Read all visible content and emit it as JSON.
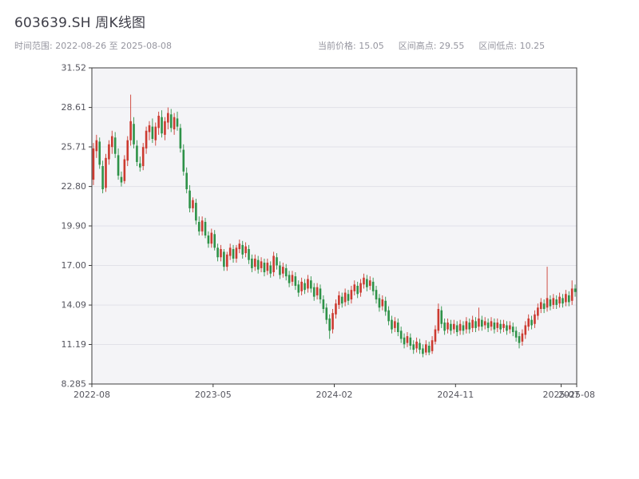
{
  "header": {
    "title": "603639.SH 周K线图",
    "range_label": "时间范围: 2022-08-26 至 2025-08-08",
    "stat_current": "当前价格: 15.05",
    "stat_high": "区间高点: 29.55",
    "stat_low": "区间低点: 10.25"
  },
  "chart_data": {
    "type": "candlestick",
    "title": "603639.SH 周K线图",
    "frequency": "weekly",
    "start_date": "2022-08-26",
    "end_date": "2025-08-08",
    "current_price": 15.05,
    "range_high": 29.55,
    "range_low": 10.25,
    "ylim": [
      8.285,
      31.52
    ],
    "y_tick_labels": [
      "8.285",
      "11.19",
      "14.09",
      "17.00",
      "19.90",
      "22.80",
      "25.71",
      "28.61",
      "31.52"
    ],
    "x_tick_labels": [
      "2022-08",
      "2023-05",
      "2024-02",
      "2024-11",
      "2025-08"
    ],
    "x_tick_weeks": [
      0,
      39,
      78,
      117,
      156
    ],
    "x_overlap_label": "2025-07",
    "x_overlap_week": 151,
    "grid": "horizontal-only",
    "legend": "none",
    "up_color": "#cc3a30",
    "down_color": "#2e9248",
    "panel_bg": "#f4f4f7",
    "grid_color": "#e1e1e8",
    "frame_color": "#3c3c3c",
    "ohlc_columns": [
      "open",
      "high",
      "low",
      "close"
    ],
    "ohlc": [
      [
        23.3,
        26.0,
        22.9,
        25.6
      ],
      [
        25.4,
        26.6,
        24.9,
        26.2
      ],
      [
        26.1,
        26.4,
        24.1,
        24.4
      ],
      [
        24.3,
        24.7,
        22.3,
        22.6
      ],
      [
        22.7,
        25.2,
        22.4,
        24.9
      ],
      [
        24.8,
        26.2,
        24.4,
        25.9
      ],
      [
        25.7,
        26.9,
        25.2,
        26.5
      ],
      [
        26.4,
        26.8,
        24.9,
        25.2
      ],
      [
        25.1,
        25.6,
        23.3,
        23.6
      ],
      [
        23.5,
        23.9,
        22.8,
        23.1
      ],
      [
        23.2,
        25.1,
        23.0,
        24.8
      ],
      [
        24.7,
        26.5,
        24.3,
        26.2
      ],
      [
        26.2,
        29.55,
        25.8,
        27.6
      ],
      [
        27.4,
        27.9,
        25.6,
        25.9
      ],
      [
        25.8,
        26.2,
        24.3,
        24.6
      ],
      [
        24.5,
        25.0,
        23.9,
        24.2
      ],
      [
        24.3,
        26.0,
        24.0,
        25.7
      ],
      [
        25.6,
        27.2,
        25.2,
        26.9
      ],
      [
        26.8,
        27.6,
        26.2,
        27.3
      ],
      [
        27.2,
        27.8,
        26.0,
        26.3
      ],
      [
        26.2,
        27.5,
        25.8,
        27.2
      ],
      [
        27.1,
        28.3,
        26.6,
        28.0
      ],
      [
        27.9,
        28.4,
        26.4,
        26.7
      ],
      [
        26.6,
        27.9,
        26.2,
        27.6
      ],
      [
        27.5,
        28.61,
        27.0,
        28.2
      ],
      [
        28.1,
        28.5,
        26.8,
        27.1
      ],
      [
        27.0,
        28.2,
        26.6,
        27.9
      ],
      [
        27.8,
        28.3,
        26.9,
        27.2
      ],
      [
        27.1,
        27.4,
        25.3,
        25.6
      ],
      [
        25.5,
        25.9,
        23.6,
        23.9
      ],
      [
        23.8,
        24.2,
        22.3,
        22.6
      ],
      [
        22.5,
        22.9,
        20.9,
        21.2
      ],
      [
        21.2,
        22.0,
        20.9,
        21.8
      ],
      [
        21.6,
        21.9,
        20.0,
        20.3
      ],
      [
        20.2,
        20.6,
        19.2,
        19.5
      ],
      [
        19.5,
        20.6,
        19.2,
        20.3
      ],
      [
        20.2,
        20.5,
        19.0,
        19.2
      ],
      [
        19.2,
        19.5,
        18.3,
        18.6
      ],
      [
        18.6,
        19.7,
        18.3,
        19.4
      ],
      [
        19.3,
        19.6,
        18.1,
        18.3
      ],
      [
        18.3,
        18.6,
        17.3,
        17.6
      ],
      [
        17.6,
        18.5,
        17.3,
        18.2
      ],
      [
        18.0,
        18.2,
        16.6,
        16.9
      ],
      [
        16.9,
        18.0,
        16.6,
        17.8
      ],
      [
        17.7,
        18.6,
        17.4,
        18.3
      ],
      [
        18.2,
        18.5,
        17.2,
        17.5
      ],
      [
        17.5,
        18.5,
        17.2,
        18.3
      ],
      [
        18.2,
        18.9,
        17.9,
        18.6
      ],
      [
        18.5,
        18.8,
        17.5,
        17.8
      ],
      [
        17.9,
        18.7,
        17.6,
        18.4
      ],
      [
        18.2,
        18.5,
        17.1,
        17.4
      ],
      [
        17.5,
        17.8,
        16.5,
        16.8
      ],
      [
        16.9,
        17.8,
        16.6,
        17.5
      ],
      [
        17.4,
        17.7,
        16.4,
        16.7
      ],
      [
        16.8,
        17.6,
        16.5,
        17.3
      ],
      [
        17.2,
        17.5,
        16.2,
        16.5
      ],
      [
        16.6,
        17.5,
        16.3,
        17.2
      ],
      [
        17.0,
        17.3,
        16.1,
        16.4
      ],
      [
        16.5,
        18.0,
        16.2,
        17.7
      ],
      [
        17.6,
        17.9,
        16.7,
        17.0
      ],
      [
        17.0,
        17.3,
        16.0,
        16.3
      ],
      [
        16.4,
        17.2,
        16.1,
        16.9
      ],
      [
        16.8,
        17.1,
        15.9,
        16.2
      ],
      [
        16.3,
        16.6,
        15.4,
        15.7
      ],
      [
        15.8,
        16.6,
        15.5,
        16.3
      ],
      [
        16.2,
        16.5,
        15.2,
        15.5
      ],
      [
        15.6,
        15.9,
        14.7,
        15.0
      ],
      [
        15.1,
        16.1,
        14.8,
        15.8
      ],
      [
        15.7,
        16.0,
        14.9,
        15.2
      ],
      [
        15.3,
        16.3,
        15.0,
        16.0
      ],
      [
        15.9,
        16.2,
        15.0,
        15.3
      ],
      [
        15.4,
        15.7,
        14.4,
        14.7
      ],
      [
        14.8,
        15.7,
        14.5,
        15.4
      ],
      [
        15.3,
        15.6,
        14.2,
        14.5
      ],
      [
        14.5,
        14.8,
        13.5,
        13.8
      ],
      [
        13.9,
        14.2,
        12.7,
        13.0
      ],
      [
        13.1,
        13.4,
        11.6,
        12.2
      ],
      [
        12.3,
        13.8,
        12.0,
        13.5
      ],
      [
        13.4,
        14.5,
        13.1,
        14.2
      ],
      [
        14.1,
        15.1,
        13.8,
        14.8
      ],
      [
        14.7,
        15.0,
        13.9,
        14.2
      ],
      [
        14.3,
        15.3,
        14.0,
        15.0
      ],
      [
        14.9,
        15.2,
        14.1,
        14.4
      ],
      [
        14.5,
        15.5,
        14.2,
        15.2
      ],
      [
        15.1,
        15.9,
        14.8,
        15.6
      ],
      [
        15.5,
        15.8,
        14.6,
        14.9
      ],
      [
        15.0,
        16.0,
        14.7,
        15.7
      ],
      [
        15.6,
        16.4,
        15.3,
        16.1
      ],
      [
        16.0,
        16.3,
        15.1,
        15.4
      ],
      [
        15.5,
        16.2,
        15.2,
        15.9
      ],
      [
        15.8,
        16.1,
        14.8,
        15.1
      ],
      [
        15.2,
        15.5,
        14.2,
        14.5
      ],
      [
        14.6,
        14.9,
        13.6,
        13.9
      ],
      [
        14.0,
        14.8,
        13.7,
        14.5
      ],
      [
        14.4,
        14.7,
        13.3,
        13.6
      ],
      [
        13.7,
        14.0,
        12.6,
        12.9
      ],
      [
        13.0,
        13.3,
        12.0,
        12.3
      ],
      [
        12.4,
        13.2,
        12.1,
        12.9
      ],
      [
        12.8,
        13.1,
        11.8,
        12.1
      ],
      [
        12.2,
        12.5,
        11.3,
        11.6
      ],
      [
        11.7,
        12.0,
        10.9,
        11.2
      ],
      [
        11.3,
        12.1,
        11.0,
        11.8
      ],
      [
        11.7,
        12.0,
        10.8,
        11.1
      ],
      [
        11.2,
        11.5,
        10.5,
        10.8
      ],
      [
        10.9,
        11.7,
        10.6,
        11.4
      ],
      [
        11.3,
        11.6,
        10.5,
        10.8
      ],
      [
        10.9,
        11.2,
        10.25,
        10.5
      ],
      [
        10.6,
        11.5,
        10.4,
        11.2
      ],
      [
        11.1,
        11.4,
        10.4,
        10.6
      ],
      [
        10.7,
        11.8,
        10.5,
        11.5
      ],
      [
        11.4,
        12.6,
        11.2,
        12.3
      ],
      [
        12.2,
        14.2,
        12.0,
        13.8
      ],
      [
        13.7,
        14.0,
        12.4,
        12.7
      ],
      [
        12.8,
        13.1,
        11.9,
        12.2
      ],
      [
        12.3,
        13.1,
        12.0,
        12.8
      ],
      [
        12.7,
        13.0,
        11.9,
        12.2
      ],
      [
        12.3,
        13.0,
        12.0,
        12.7
      ],
      [
        12.6,
        12.9,
        11.8,
        12.1
      ],
      [
        12.2,
        13.0,
        11.9,
        12.7
      ],
      [
        12.6,
        12.9,
        11.9,
        12.2
      ],
      [
        12.3,
        13.2,
        12.0,
        12.9
      ],
      [
        12.8,
        13.1,
        12.0,
        12.3
      ],
      [
        12.4,
        13.3,
        12.1,
        13.0
      ],
      [
        12.9,
        13.2,
        12.1,
        12.4
      ],
      [
        12.5,
        13.9,
        12.2,
        13.1
      ],
      [
        13.0,
        13.3,
        12.2,
        12.5
      ],
      [
        12.6,
        13.2,
        12.3,
        12.9
      ],
      [
        12.8,
        13.1,
        12.1,
        12.4
      ],
      [
        12.5,
        13.2,
        12.2,
        12.9
      ],
      [
        12.8,
        13.1,
        12.0,
        12.3
      ],
      [
        12.4,
        13.1,
        12.1,
        12.8
      ],
      [
        12.7,
        13.0,
        12.0,
        12.3
      ],
      [
        12.4,
        13.0,
        12.1,
        12.7
      ],
      [
        12.6,
        12.9,
        11.9,
        12.2
      ],
      [
        12.3,
        12.9,
        12.0,
        12.6
      ],
      [
        12.5,
        12.8,
        11.8,
        12.1
      ],
      [
        12.2,
        12.5,
        11.4,
        11.7
      ],
      [
        11.8,
        12.1,
        10.9,
        11.3
      ],
      [
        11.4,
        12.3,
        11.1,
        12.0
      ],
      [
        11.9,
        12.9,
        11.6,
        12.6
      ],
      [
        12.5,
        13.4,
        12.2,
        13.1
      ],
      [
        13.0,
        13.3,
        12.3,
        12.6
      ],
      [
        12.7,
        13.7,
        12.4,
        13.4
      ],
      [
        13.3,
        14.2,
        13.0,
        13.9
      ],
      [
        13.8,
        14.6,
        13.5,
        14.3
      ],
      [
        14.2,
        14.5,
        13.5,
        13.8
      ],
      [
        13.9,
        16.9,
        13.6,
        14.6
      ],
      [
        14.5,
        14.8,
        13.7,
        14.0
      ],
      [
        14.1,
        14.9,
        13.8,
        14.6
      ],
      [
        14.5,
        14.8,
        13.8,
        14.1
      ],
      [
        14.2,
        15.0,
        13.9,
        14.7
      ],
      [
        14.6,
        14.9,
        13.9,
        14.2
      ],
      [
        14.3,
        15.2,
        14.0,
        14.9
      ],
      [
        14.8,
        15.1,
        14.0,
        14.3
      ],
      [
        14.4,
        15.9,
        14.1,
        15.3
      ],
      [
        15.3,
        15.6,
        14.7,
        15.05
      ]
    ]
  }
}
